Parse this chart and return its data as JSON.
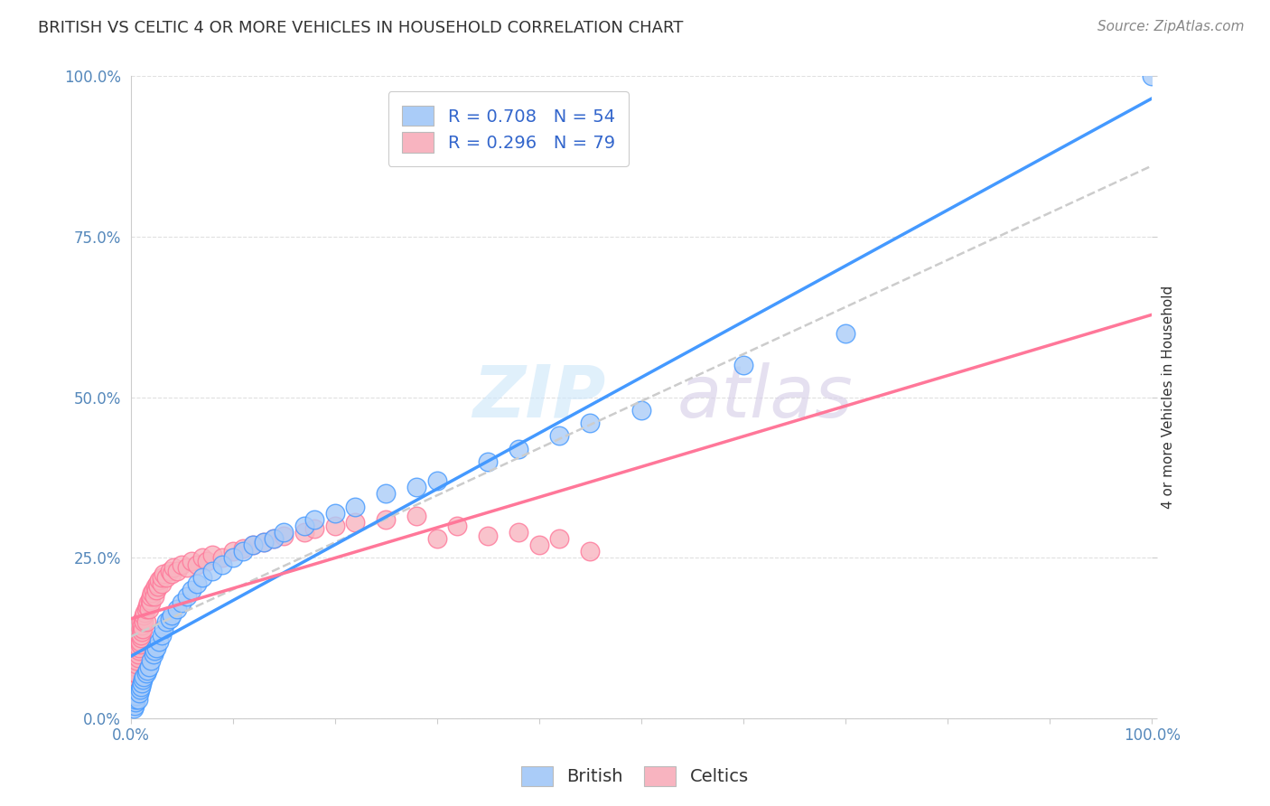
{
  "title": "BRITISH VS CELTIC 4 OR MORE VEHICLES IN HOUSEHOLD CORRELATION CHART",
  "source_text": "Source: ZipAtlas.com",
  "ylabel": "4 or more Vehicles in Household",
  "watermark_zip": "ZIP",
  "watermark_atlas": "atlas",
  "legend_r_british": "R = 0.708",
  "legend_n_british": "N = 54",
  "legend_r_celtics": "R = 0.296",
  "legend_n_celtics": "N = 79",
  "british_color": "#aaccf8",
  "celtics_color": "#f8b4c0",
  "british_line_color": "#4499ff",
  "celtics_line_color": "#ff7799",
  "regression_line_color": "#cccccc",
  "xlim": [
    0,
    100
  ],
  "ylim": [
    0,
    100
  ],
  "ytick_labels": [
    "0.0%",
    "25.0%",
    "50.0%",
    "75.0%",
    "100.0%"
  ],
  "ytick_positions": [
    0,
    25,
    50,
    75,
    100
  ],
  "grid_color": "#e0e0e0",
  "background_color": "#ffffff",
  "british_scatter_x": [
    0.3,
    0.4,
    0.5,
    0.5,
    0.6,
    0.7,
    0.8,
    0.9,
    1.0,
    1.1,
    1.2,
    1.3,
    1.5,
    1.6,
    1.8,
    2.0,
    2.2,
    2.3,
    2.5,
    2.8,
    3.0,
    3.2,
    3.5,
    3.8,
    4.0,
    4.5,
    5.0,
    5.5,
    6.0,
    6.5,
    7.0,
    8.0,
    9.0,
    10.0,
    11.0,
    12.0,
    13.0,
    14.0,
    15.0,
    17.0,
    18.0,
    20.0,
    22.0,
    25.0,
    28.0,
    30.0,
    35.0,
    38.0,
    42.0,
    45.0,
    50.0,
    60.0,
    70.0,
    100.0
  ],
  "british_scatter_y": [
    1.5,
    2.0,
    2.5,
    3.0,
    3.5,
    3.0,
    4.0,
    4.5,
    5.0,
    5.5,
    6.0,
    6.5,
    7.0,
    7.5,
    8.0,
    9.0,
    10.0,
    10.5,
    11.0,
    12.0,
    13.0,
    14.0,
    15.0,
    15.5,
    16.0,
    17.0,
    18.0,
    19.0,
    20.0,
    21.0,
    22.0,
    23.0,
    24.0,
    25.0,
    26.0,
    27.0,
    27.5,
    28.0,
    29.0,
    30.0,
    31.0,
    32.0,
    33.0,
    35.0,
    36.0,
    37.0,
    40.0,
    42.0,
    44.0,
    46.0,
    48.0,
    55.0,
    60.0,
    100.0
  ],
  "celtics_scatter_x": [
    0.2,
    0.3,
    0.3,
    0.4,
    0.4,
    0.5,
    0.5,
    0.5,
    0.6,
    0.6,
    0.6,
    0.7,
    0.7,
    0.8,
    0.8,
    0.9,
    0.9,
    1.0,
    1.0,
    1.0,
    1.0,
    1.1,
    1.1,
    1.2,
    1.2,
    1.3,
    1.3,
    1.4,
    1.5,
    1.5,
    1.6,
    1.7,
    1.8,
    1.9,
    2.0,
    2.0,
    2.1,
    2.2,
    2.3,
    2.4,
    2.5,
    2.6,
    2.7,
    2.8,
    3.0,
    3.0,
    3.2,
    3.5,
    3.8,
    4.0,
    4.2,
    4.5,
    5.0,
    5.5,
    6.0,
    6.5,
    7.0,
    7.5,
    8.0,
    9.0,
    10.0,
    11.0,
    12.0,
    13.0,
    14.0,
    15.0,
    17.0,
    18.0,
    20.0,
    22.0,
    25.0,
    28.0,
    30.0,
    32.0,
    35.0,
    38.0,
    40.0,
    42.0,
    45.0
  ],
  "celtics_scatter_y": [
    3.0,
    4.0,
    5.0,
    5.5,
    6.0,
    6.5,
    7.0,
    8.0,
    7.0,
    8.5,
    9.0,
    9.5,
    10.0,
    10.5,
    11.0,
    11.5,
    12.0,
    12.5,
    13.0,
    14.0,
    15.0,
    13.5,
    14.5,
    14.0,
    15.5,
    15.0,
    16.0,
    16.5,
    15.0,
    17.0,
    17.5,
    18.0,
    17.0,
    18.5,
    18.0,
    19.0,
    19.5,
    20.0,
    19.0,
    20.5,
    20.0,
    21.0,
    20.5,
    21.5,
    21.0,
    22.0,
    22.5,
    22.0,
    23.0,
    22.5,
    23.5,
    23.0,
    24.0,
    23.5,
    24.5,
    24.0,
    25.0,
    24.5,
    25.5,
    25.0,
    26.0,
    26.5,
    27.0,
    27.5,
    28.0,
    28.5,
    29.0,
    29.5,
    30.0,
    30.5,
    31.0,
    31.5,
    28.0,
    30.0,
    28.5,
    29.0,
    27.0,
    28.0,
    26.0
  ],
  "title_fontsize": 13,
  "axis_label_fontsize": 11,
  "tick_fontsize": 12,
  "legend_fontsize": 14,
  "source_fontsize": 11
}
